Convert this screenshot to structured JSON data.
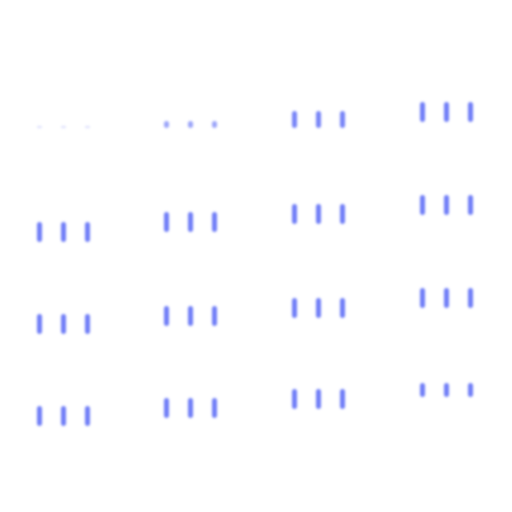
{
  "canvas": {
    "background": "#ffffff"
  },
  "style": {
    "bar_color": "#6f7df7"
  },
  "rows": [
    {
      "row": 1,
      "groups": [
        {
          "col": 1,
          "bars": [
            0.05,
            0.05,
            0.05
          ],
          "opacity": [
            0.25,
            0.25,
            0.25
          ]
        },
        {
          "col": 2,
          "bars": [
            0.35,
            0.35,
            0.35
          ],
          "opacity": [
            0.7,
            0.7,
            0.7
          ]
        },
        {
          "col": 3,
          "bars": [
            0.85,
            0.85,
            0.85
          ],
          "opacity": [
            0.95,
            0.95,
            0.95
          ]
        },
        {
          "col": 4,
          "bars": [
            1.0,
            1.0,
            1.0
          ],
          "opacity": [
            1,
            1,
            1
          ]
        }
      ]
    },
    {
      "row": 2,
      "groups": [
        {
          "col": 1,
          "bars": [
            1.0,
            1.0,
            1.0
          ],
          "opacity": [
            1,
            1,
            1
          ]
        },
        {
          "col": 2,
          "bars": [
            1.0,
            1.0,
            1.0
          ],
          "opacity": [
            1,
            1,
            1
          ]
        },
        {
          "col": 3,
          "bars": [
            1.0,
            1.0,
            1.0
          ],
          "opacity": [
            1,
            1,
            1
          ]
        },
        {
          "col": 4,
          "bars": [
            1.0,
            1.0,
            1.0
          ],
          "opacity": [
            1,
            1,
            1
          ]
        }
      ]
    },
    {
      "row": 3,
      "groups": [
        {
          "col": 1,
          "bars": [
            1.0,
            1.0,
            1.0
          ],
          "opacity": [
            1,
            1,
            1
          ]
        },
        {
          "col": 2,
          "bars": [
            1.0,
            1.0,
            1.0
          ],
          "opacity": [
            1,
            1,
            1
          ]
        },
        {
          "col": 3,
          "bars": [
            1.0,
            1.0,
            1.0
          ],
          "opacity": [
            1,
            1,
            1
          ]
        },
        {
          "col": 4,
          "bars": [
            1.0,
            1.0,
            1.0
          ],
          "opacity": [
            1,
            1,
            1
          ]
        }
      ]
    },
    {
      "row": 4,
      "groups": [
        {
          "col": 1,
          "bars": [
            1.0,
            1.0,
            1.0
          ],
          "opacity": [
            1,
            1,
            1
          ]
        },
        {
          "col": 2,
          "bars": [
            1.0,
            1.0,
            1.0
          ],
          "opacity": [
            1,
            1,
            1
          ]
        },
        {
          "col": 3,
          "bars": [
            1.0,
            1.0,
            1.0
          ],
          "opacity": [
            1,
            1,
            1
          ]
        },
        {
          "col": 4,
          "bars": [
            0.7,
            0.7,
            0.7
          ],
          "opacity": [
            1,
            1,
            1
          ]
        }
      ]
    }
  ]
}
